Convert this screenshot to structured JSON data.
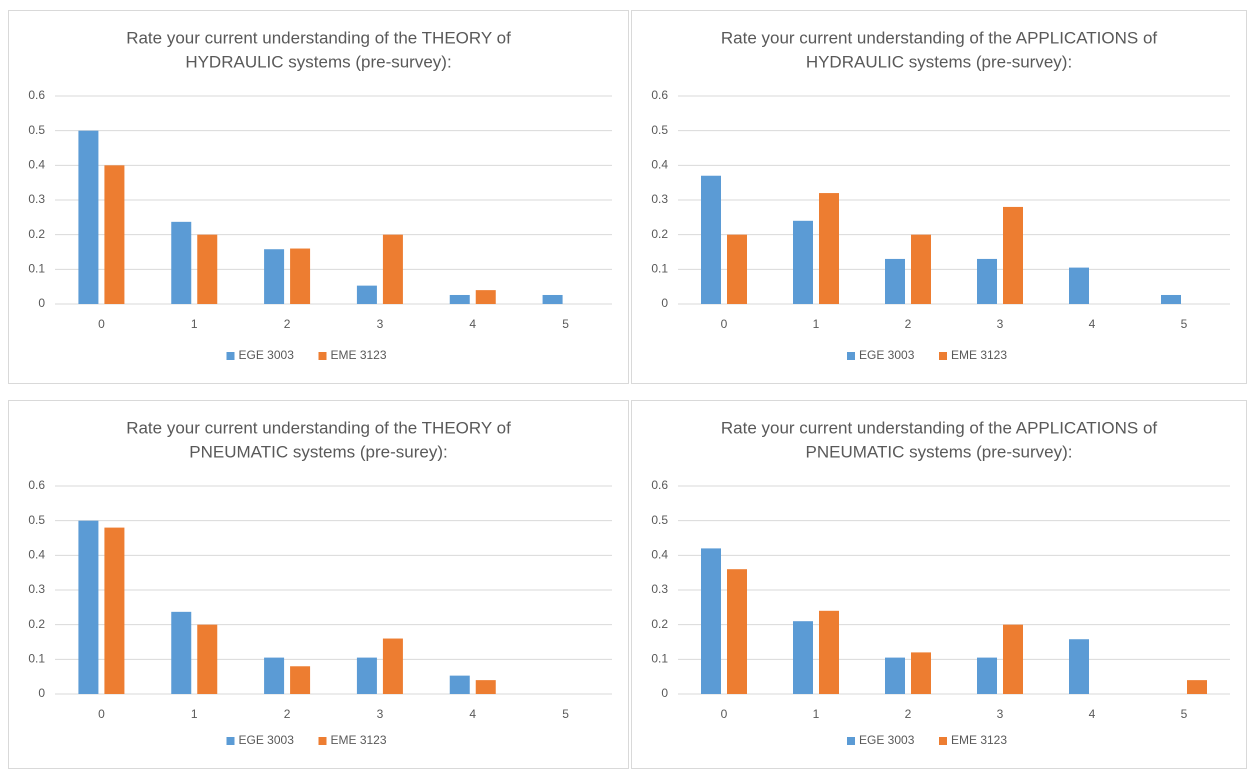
{
  "chart_data": [
    {
      "type": "bar",
      "title": [
        "Rate your current understanding of the THEORY of",
        "HYDRAULIC systems (pre-survey):"
      ],
      "categories": [
        "0",
        "1",
        "2",
        "3",
        "4",
        "5"
      ],
      "series": [
        {
          "name": "EGE 3003",
          "color": "#5b9bd5",
          "values": [
            0.5,
            0.237,
            0.158,
            0.053,
            0.026,
            0.026
          ]
        },
        {
          "name": "EME 3123",
          "color": "#ed7d31",
          "values": [
            0.4,
            0.2,
            0.16,
            0.2,
            0.04,
            0
          ]
        }
      ],
      "ylim": [
        0,
        0.6
      ],
      "yticks": [
        0,
        0.1,
        0.2,
        0.3,
        0.4,
        0.5,
        0.6
      ],
      "grid": true,
      "legend": "bottom"
    },
    {
      "type": "bar",
      "title": [
        "Rate your current understanding of the APPLICATIONS of",
        "HYDRAULIC systems (pre-survey):"
      ],
      "categories": [
        "0",
        "1",
        "2",
        "3",
        "4",
        "5"
      ],
      "series": [
        {
          "name": "EGE 3003",
          "color": "#5b9bd5",
          "values": [
            0.37,
            0.24,
            0.13,
            0.13,
            0.105,
            0.026
          ]
        },
        {
          "name": "EME 3123",
          "color": "#ed7d31",
          "values": [
            0.2,
            0.32,
            0.2,
            0.28,
            0,
            0
          ]
        }
      ],
      "ylim": [
        0,
        0.6
      ],
      "yticks": [
        0,
        0.1,
        0.2,
        0.3,
        0.4,
        0.5,
        0.6
      ],
      "grid": true,
      "legend": "bottom"
    },
    {
      "type": "bar",
      "title": [
        "Rate your current understanding of the THEORY of",
        "PNEUMATIC systems (pre-surey):"
      ],
      "categories": [
        "0",
        "1",
        "2",
        "3",
        "4",
        "5"
      ],
      "series": [
        {
          "name": "EGE 3003",
          "color": "#5b9bd5",
          "values": [
            0.5,
            0.237,
            0.105,
            0.105,
            0.053,
            0
          ]
        },
        {
          "name": "EME 3123",
          "color": "#ed7d31",
          "values": [
            0.48,
            0.2,
            0.08,
            0.16,
            0.04,
            0
          ]
        }
      ],
      "ylim": [
        0,
        0.6
      ],
      "yticks": [
        0,
        0.1,
        0.2,
        0.3,
        0.4,
        0.5,
        0.6
      ],
      "grid": true,
      "legend": "bottom"
    },
    {
      "type": "bar",
      "title": [
        "Rate your current understanding of the APPLICATIONS of",
        "PNEUMATIC systems (pre-survey):"
      ],
      "categories": [
        "0",
        "1",
        "2",
        "3",
        "4",
        "5"
      ],
      "series": [
        {
          "name": "EGE 3003",
          "color": "#5b9bd5",
          "values": [
            0.42,
            0.21,
            0.105,
            0.105,
            0.158,
            0
          ]
        },
        {
          "name": "EME 3123",
          "color": "#ed7d31",
          "values": [
            0.36,
            0.24,
            0.12,
            0.2,
            0,
            0.04
          ]
        }
      ],
      "ylim": [
        0,
        0.6
      ],
      "yticks": [
        0,
        0.1,
        0.2,
        0.3,
        0.4,
        0.5,
        0.6
      ],
      "grid": true,
      "legend": "bottom"
    }
  ]
}
